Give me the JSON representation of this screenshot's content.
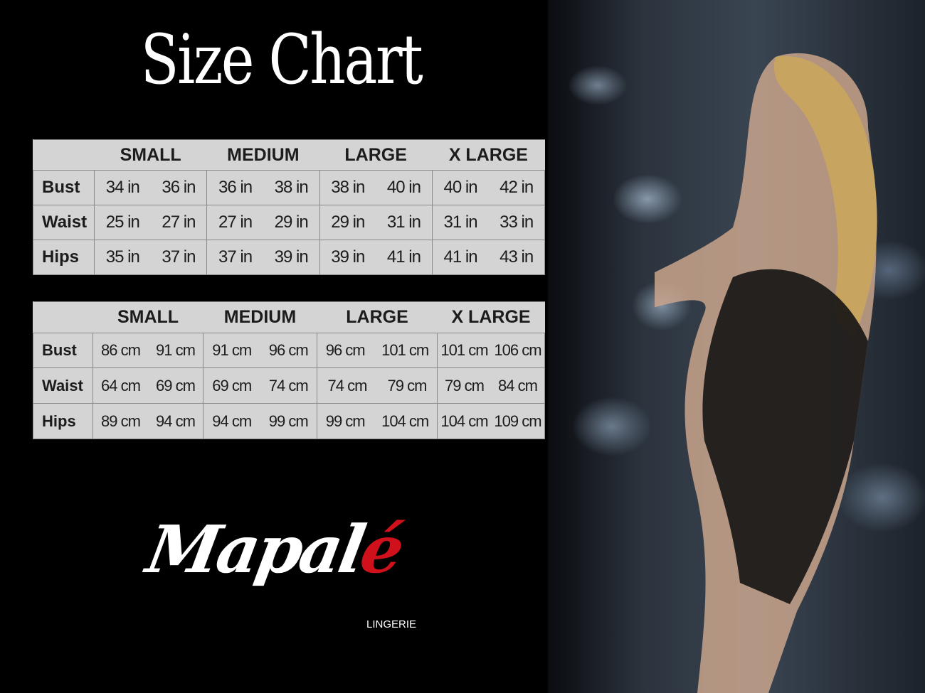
{
  "title": "Size Chart",
  "sizes": [
    "SMALL",
    "MEDIUM",
    "LARGE",
    "X LARGE"
  ],
  "inches": {
    "rows": [
      {
        "label": "Bust",
        "values": [
          [
            "34 in",
            "36 in"
          ],
          [
            "36 in",
            "38 in"
          ],
          [
            "38 in",
            "40 in"
          ],
          [
            "40 in",
            "42 in"
          ]
        ]
      },
      {
        "label": "Waist",
        "values": [
          [
            "25 in",
            "27 in"
          ],
          [
            "27 in",
            "29 in"
          ],
          [
            "29 in",
            "31 in"
          ],
          [
            "31 in",
            "33 in"
          ]
        ]
      },
      {
        "label": "Hips",
        "values": [
          [
            "35 in",
            "37 in"
          ],
          [
            "37 in",
            "39 in"
          ],
          [
            "39 in",
            "41 in"
          ],
          [
            "41 in",
            "43 in"
          ]
        ]
      }
    ]
  },
  "centimeters": {
    "rows": [
      {
        "label": "Bust",
        "values": [
          [
            "86 cm",
            "91 cm"
          ],
          [
            "91 cm",
            "96 cm"
          ],
          [
            "96 cm",
            "101 cm"
          ],
          [
            "101 cm",
            "106 cm"
          ]
        ]
      },
      {
        "label": "Waist",
        "values": [
          [
            "64 cm",
            "69 cm"
          ],
          [
            "69 cm",
            "74 cm"
          ],
          [
            "74 cm",
            "79 cm"
          ],
          [
            "79 cm",
            "84 cm"
          ]
        ]
      },
      {
        "label": "Hips",
        "values": [
          [
            "89 cm",
            "94 cm"
          ],
          [
            "94 cm",
            "99 cm"
          ],
          [
            "99 cm",
            "104 cm"
          ],
          [
            "104 cm",
            "109 cm"
          ]
        ]
      }
    ]
  },
  "logo": {
    "brand": "Mapalé",
    "sub": "LINGERIE",
    "accent": "#d0101a"
  },
  "colors": {
    "background": "#000000",
    "table": "#d4d4d4",
    "text": "#1c1c1c"
  }
}
